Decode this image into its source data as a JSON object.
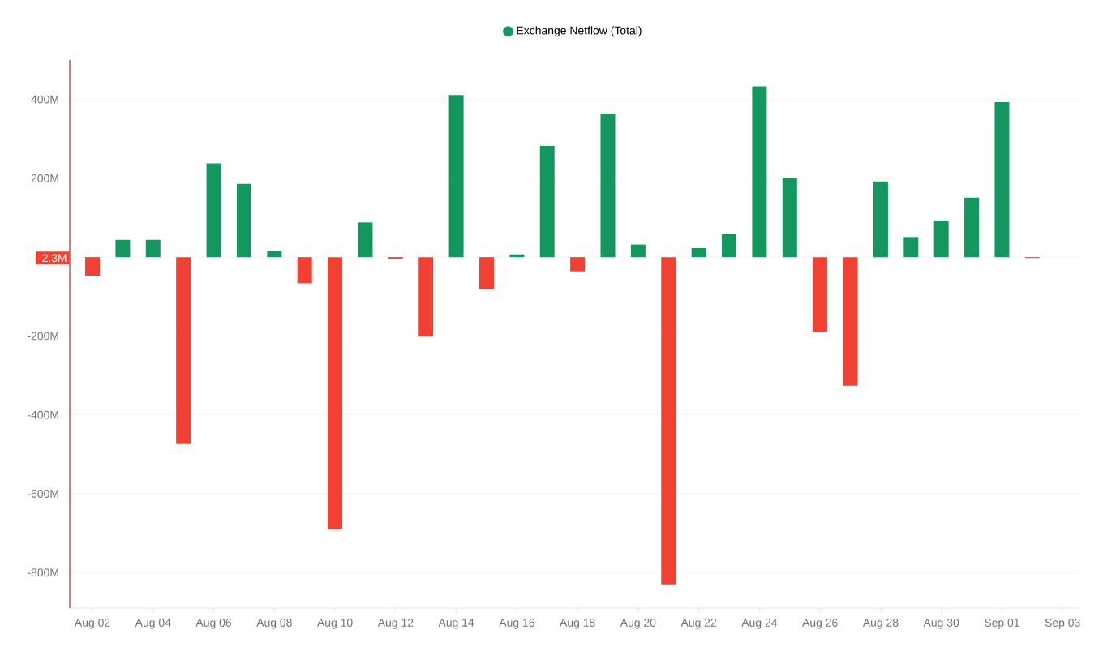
{
  "chart_data": {
    "type": "bar",
    "categories": [
      "Aug 02",
      null,
      "Aug 04",
      null,
      "Aug 06",
      null,
      "Aug 08",
      null,
      "Aug 10",
      null,
      "Aug 12",
      null,
      "Aug 14",
      null,
      "Aug 16",
      null,
      "Aug 18",
      null,
      "Aug 20",
      null,
      "Aug 22",
      null,
      "Aug 24",
      null,
      "Aug 26",
      null,
      "Aug 28",
      null,
      "Aug 30",
      null,
      "Sep 01",
      null,
      "Sep 03"
    ],
    "series": [
      {
        "name": "Exchange Netflow (Total)",
        "color": "#14965f",
        "values": [
          -47,
          44,
          44,
          -474,
          238,
          186,
          15,
          -66,
          -690,
          88,
          -5,
          -201,
          411,
          -81,
          7,
          282,
          -36,
          364,
          32,
          -830,
          23,
          59,
          433,
          200,
          -189,
          -326,
          192,
          51,
          93,
          151,
          393,
          -2.3,
          null
        ],
        "colors": [
          "#f04134",
          "#14965f",
          "#14965f",
          "#f04134",
          "#14965f",
          "#14965f",
          "#14965f",
          "#f04134",
          "#f04134",
          "#14965f",
          "#f04134",
          "#f04134",
          "#14965f",
          "#f04134",
          "#14965f",
          "#14965f",
          "#f04134",
          "#14965f",
          "#14965f",
          "#f04134",
          "#14965f",
          "#14965f",
          "#14965f",
          "#14965f",
          "#f04134",
          "#f04134",
          "#14965f",
          "#14965f",
          "#14965f",
          "#14965f",
          "#14965f",
          "#f04134",
          "#f04134"
        ]
      }
    ],
    "ylim": [
      -890,
      500
    ],
    "yticks": [
      {
        "value": -800,
        "label": "-800M"
      },
      {
        "value": -600,
        "label": "-600M"
      },
      {
        "value": -400,
        "label": "-400M"
      },
      {
        "value": -200,
        "label": "-200M"
      },
      {
        "value": 0,
        "label": null
      },
      {
        "value": 200,
        "label": "200M"
      },
      {
        "value": 400,
        "label": "400M"
      }
    ],
    "annotations": [
      {
        "text": "-2.3M",
        "y": -2.3
      }
    ],
    "grid": "y",
    "legend": "top"
  }
}
